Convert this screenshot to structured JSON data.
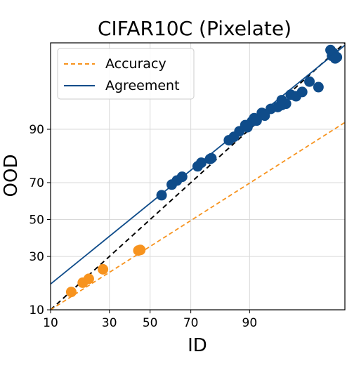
{
  "chart_data": {
    "type": "scatter",
    "title": "CIFAR10C (Pixelate)",
    "xlabel": "ID",
    "ylabel": "OOD",
    "scale": "probit",
    "xlim": [
      10,
      99.4
    ],
    "ylim": [
      10,
      99.4
    ],
    "xticks": [
      10,
      30,
      50,
      70,
      90
    ],
    "yticks": [
      10,
      30,
      50,
      70,
      90
    ],
    "grid": true,
    "legend_position": "top-left",
    "series": [
      {
        "name": "Accuracy",
        "color": "#f7931e",
        "line_style": "dashed",
        "fit_line": [
          [
            10,
            10
          ],
          [
            99.4,
            91.6
          ]
        ],
        "points": [
          [
            15.5,
            15.2
          ],
          [
            19.3,
            18.5
          ],
          [
            21.5,
            20.0
          ],
          [
            27.2,
            24.0
          ],
          [
            44.0,
            33.0
          ],
          [
            45.0,
            33.3
          ]
        ]
      },
      {
        "name": "Agreement",
        "color": "#0f4c8a",
        "line_style": "solid",
        "fit_line": [
          [
            10,
            18.0
          ],
          [
            99.4,
            99.34
          ]
        ],
        "points": [
          [
            55.9,
            63.5
          ],
          [
            61.0,
            69.0
          ],
          [
            63.5,
            71.0
          ],
          [
            66.0,
            72.8
          ],
          [
            73.0,
            77.5
          ],
          [
            74.5,
            79.0
          ],
          [
            78.0,
            80.5
          ],
          [
            78.5,
            80.8
          ],
          [
            84.5,
            87.0
          ],
          [
            86.0,
            88.0
          ],
          [
            87.5,
            89.5
          ],
          [
            89.0,
            91.0
          ],
          [
            89.5,
            90.5
          ],
          [
            90.5,
            91.8
          ],
          [
            91.0,
            92.5
          ],
          [
            91.5,
            92.0
          ],
          [
            92.5,
            93.5
          ],
          [
            93.0,
            93.0
          ],
          [
            94.0,
            94.2
          ],
          [
            95.0,
            94.5
          ],
          [
            95.5,
            94.8
          ],
          [
            96.0,
            95.0
          ],
          [
            95.5,
            95.5
          ],
          [
            96.5,
            96.2
          ],
          [
            97.0,
            96.0
          ],
          [
            97.5,
            96.5
          ],
          [
            98.0,
            97.5
          ],
          [
            98.5,
            97.0
          ],
          [
            99.0,
            99.2
          ],
          [
            99.05,
            99.0
          ],
          [
            99.1,
            99.1
          ],
          [
            99.15,
            98.9
          ],
          [
            99.2,
            98.95
          ]
        ]
      }
    ],
    "reference_line": {
      "style": "dashed",
      "color": "#000000",
      "points": [
        [
          10,
          10
        ],
        [
          99.4,
          99.4
        ]
      ]
    }
  }
}
